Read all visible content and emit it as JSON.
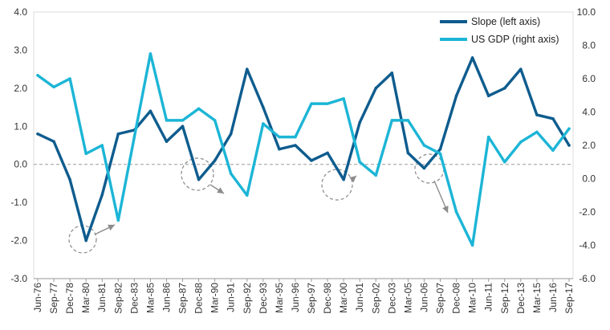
{
  "chart_data": {
    "type": "line",
    "title": "",
    "x": [
      "Jun-76",
      "Sep-77",
      "Dec-78",
      "Mar-80",
      "Jun-81",
      "Sep-82",
      "Dec-83",
      "Mar-85",
      "Jun-86",
      "Sep-87",
      "Dec-88",
      "Mar-90",
      "Jun-91",
      "Sep-92",
      "Dec-93",
      "Mar-95",
      "Jun-96",
      "Sep-97",
      "Dec-98",
      "Mar-00",
      "Jun-01",
      "Sep-02",
      "Dec-03",
      "Mar-05",
      "Jun-06",
      "Sep-07",
      "Dec-08",
      "Mar-10",
      "Jun-11",
      "Sep-12",
      "Dec-13",
      "Mar-15",
      "Jun-16",
      "Sep-17"
    ],
    "x_tick_labels": [
      "Jun-76",
      "Sep-77",
      "Dec-78",
      "Mar-80",
      "Jun-81",
      "Sep-82",
      "Dec-83",
      "Mar-85",
      "Jun-86",
      "Sep-87",
      "Dec-88",
      "Mar-90",
      "Jun-91",
      "Sep-92",
      "Dec-93",
      "Mar-95",
      "Jun-96",
      "Sep-97",
      "Dec-98",
      "Mar-00",
      "Jun-01",
      "Sep-02",
      "Dec-03",
      "Mar-05",
      "Jun-06",
      "Sep-07",
      "Dec-08",
      "Mar-10",
      "Jun-11",
      "Sep-12",
      "Dec-13",
      "Mar-15",
      "Jun-16",
      "Sep-17"
    ],
    "left_axis": {
      "ylim": [
        -3.0,
        4.0
      ],
      "ticks": [
        "4.0",
        "3.0",
        "2.0",
        "1.0",
        "0.0",
        "-1.0",
        "-2.0",
        "-3.0"
      ]
    },
    "right_axis": {
      "ylim": [
        -6.0,
        10.0
      ],
      "ticks": [
        "10.0",
        "8.0",
        "6.0",
        "4.0",
        "2.0",
        "0.0",
        "-2.0",
        "-4.0",
        "-6.0"
      ]
    },
    "zero_line": true,
    "legend_position": "top-right",
    "series": [
      {
        "name": "Slope (left axis)",
        "axis": "left",
        "color": "#0e5c8e",
        "values": [
          0.8,
          0.6,
          -0.4,
          -2.0,
          -0.8,
          0.8,
          0.9,
          1.4,
          0.6,
          1.0,
          -0.4,
          0.1,
          0.8,
          2.5,
          1.5,
          0.4,
          0.5,
          0.1,
          0.3,
          -0.4,
          1.1,
          2.0,
          2.4,
          0.3,
          -0.1,
          0.4,
          1.8,
          2.8,
          1.8,
          2.0,
          2.5,
          1.3,
          1.2,
          0.5
        ]
      },
      {
        "name": "US GDP (right axis)",
        "axis": "right",
        "color": "#1cb5d6",
        "values": [
          6.2,
          5.5,
          6.0,
          1.5,
          2.0,
          -2.5,
          2.5,
          7.5,
          3.5,
          3.5,
          4.2,
          3.5,
          0.3,
          -1.0,
          3.3,
          2.5,
          2.5,
          4.5,
          4.5,
          4.8,
          1.0,
          0.2,
          3.5,
          3.5,
          2.0,
          1.5,
          -2.0,
          -4.0,
          2.5,
          1.0,
          2.2,
          2.8,
          1.7,
          3.0
        ]
      }
    ]
  }
}
